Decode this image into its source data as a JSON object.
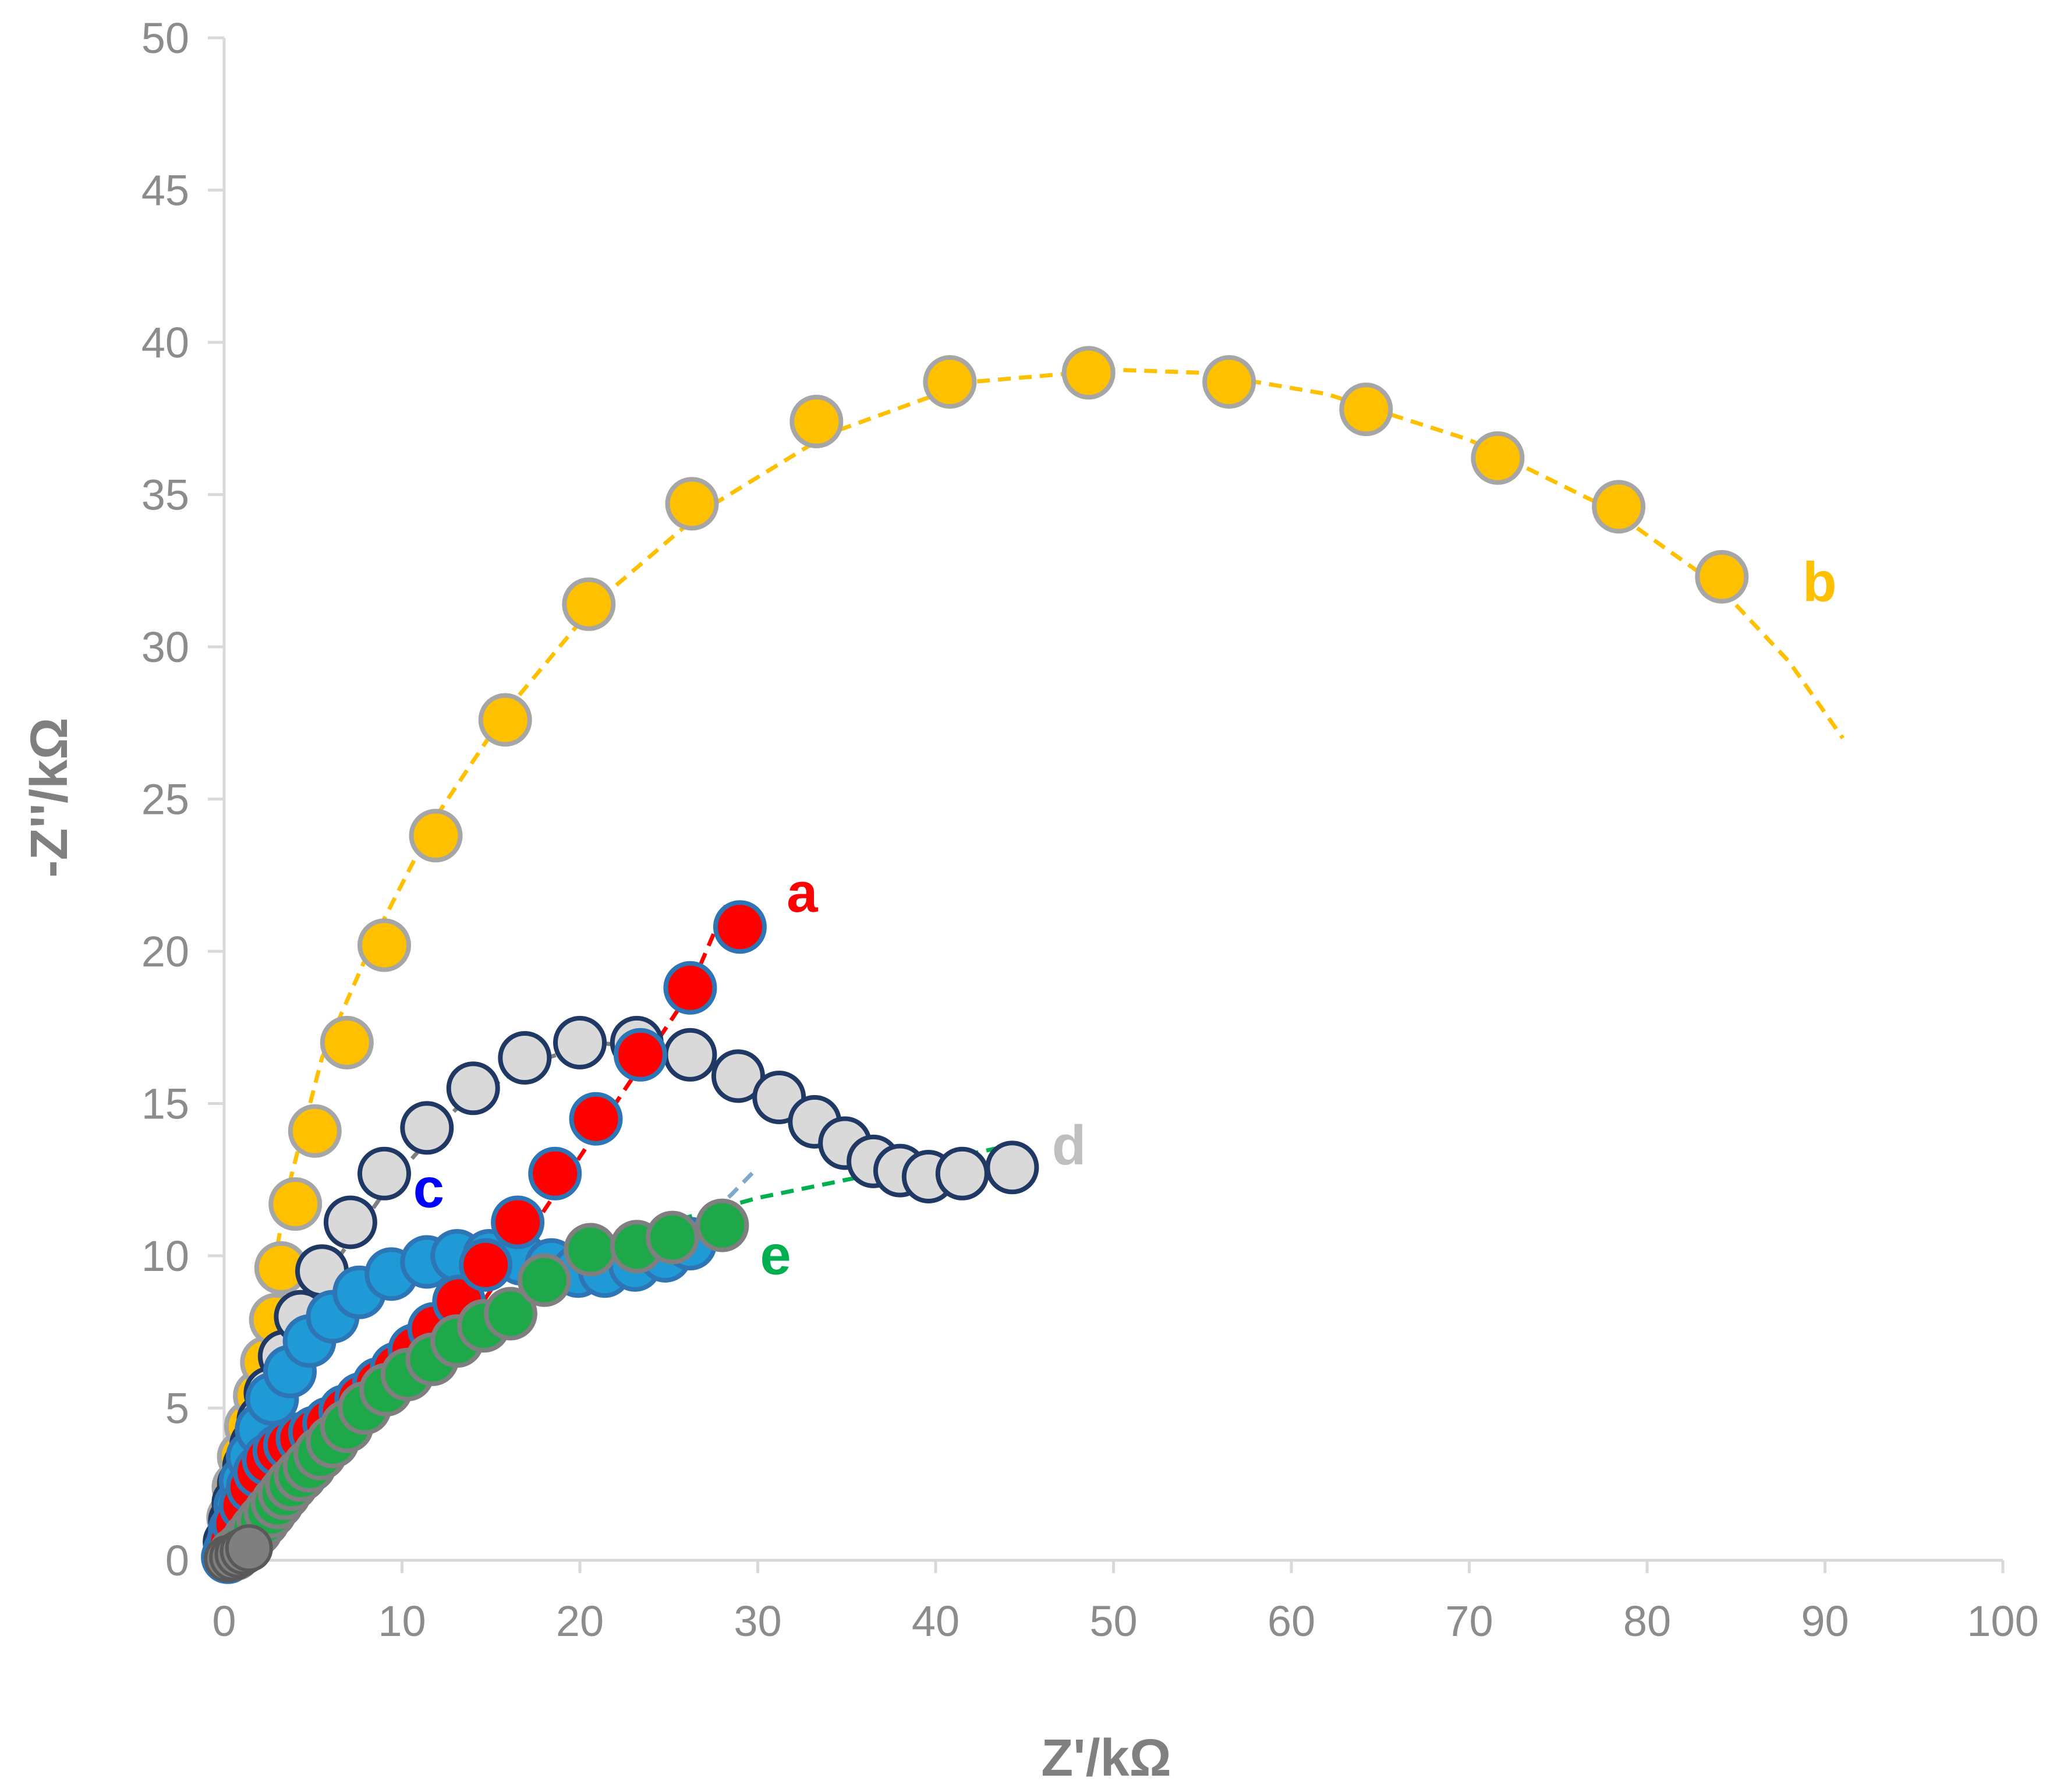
{
  "chart_data": {
    "type": "scatter",
    "title": "",
    "xlabel": "Z'/kΩ",
    "ylabel": "-Z''/kΩ",
    "xlim": [
      0,
      100
    ],
    "ylim": [
      0,
      50
    ],
    "xticks": [
      "0",
      "10",
      "20",
      "30",
      "40",
      "50",
      "60",
      "70",
      "80",
      "90",
      "100"
    ],
    "yticks": [
      "0",
      "5",
      "10",
      "15",
      "20",
      "25",
      "30",
      "35",
      "40",
      "45",
      "50"
    ],
    "grid": false,
    "legend": "none",
    "colors": {
      "a": "#ff0000",
      "b": "#ffc000",
      "c": "#00b0f0",
      "d": "#bfbfbf",
      "e": "#00b050",
      "axis": "#d9d9d9",
      "open_marker_edge": "#1f3864"
    },
    "series": [
      {
        "name": "a",
        "label_pos": [
          32.5,
          21.3
        ],
        "points": [
          [
            0.2,
            0.1
          ],
          [
            0.5,
            0.6
          ],
          [
            0.8,
            1.2
          ],
          [
            1.2,
            1.8
          ],
          [
            1.6,
            2.4
          ],
          [
            2.0,
            2.9
          ],
          [
            2.5,
            3.3
          ],
          [
            3.1,
            3.6
          ],
          [
            3.7,
            3.8
          ],
          [
            4.4,
            4.0
          ],
          [
            5.1,
            4.2
          ],
          [
            5.9,
            4.5
          ],
          [
            6.8,
            4.9
          ],
          [
            7.7,
            5.3
          ],
          [
            8.7,
            5.8
          ],
          [
            9.7,
            6.3
          ],
          [
            10.7,
            6.9
          ],
          [
            11.8,
            7.6
          ],
          [
            13.2,
            8.5
          ],
          [
            14.7,
            9.7
          ],
          [
            16.5,
            11.1
          ],
          [
            18.6,
            12.7
          ],
          [
            20.9,
            14.5
          ],
          [
            23.4,
            16.6
          ],
          [
            26.2,
            18.8
          ],
          [
            29.0,
            20.8
          ]
        ],
        "fit": [
          [
            14.0,
            8.0
          ],
          [
            18.0,
            11.5
          ],
          [
            22.0,
            15.0
          ],
          [
            26.0,
            18.5
          ],
          [
            28.2,
            21.5
          ]
        ]
      },
      {
        "name": "b",
        "label_pos": [
          89.7,
          31.5
        ],
        "points": [
          [
            0.3,
            0.6
          ],
          [
            0.5,
            1.4
          ],
          [
            0.8,
            2.4
          ],
          [
            1.1,
            3.4
          ],
          [
            1.5,
            4.4
          ],
          [
            2.0,
            5.4
          ],
          [
            2.4,
            6.5
          ],
          [
            2.9,
            7.9
          ],
          [
            3.2,
            9.6
          ],
          [
            4.0,
            11.7
          ],
          [
            5.1,
            14.1
          ],
          [
            6.9,
            17.0
          ],
          [
            9.0,
            20.2
          ],
          [
            11.9,
            23.8
          ],
          [
            15.8,
            27.6
          ],
          [
            20.5,
            31.4
          ],
          [
            26.3,
            34.7
          ],
          [
            33.3,
            37.4
          ],
          [
            40.8,
            38.7
          ],
          [
            48.6,
            39.0
          ],
          [
            56.5,
            38.7
          ],
          [
            64.2,
            37.8
          ],
          [
            71.6,
            36.2
          ],
          [
            78.4,
            34.6
          ],
          [
            84.2,
            32.3
          ]
        ],
        "fit": [
          [
            0.5,
            1.5
          ],
          [
            2.0,
            7.0
          ],
          [
            3.5,
            12.0
          ],
          [
            5.5,
            16.5
          ],
          [
            8.5,
            20.5
          ],
          [
            12.0,
            24.5
          ],
          [
            16.0,
            28.0
          ],
          [
            21.0,
            31.5
          ],
          [
            27.0,
            34.5
          ],
          [
            34.0,
            37.0
          ],
          [
            42.0,
            38.7
          ],
          [
            50.0,
            39.1
          ],
          [
            55.0,
            39.0
          ],
          [
            62.0,
            38.3
          ],
          [
            70.0,
            36.8
          ],
          [
            78.0,
            34.5
          ],
          [
            84.0,
            32.0
          ],
          [
            88.0,
            29.5
          ],
          [
            91.0,
            27.0
          ]
        ]
      },
      {
        "name": "c",
        "label_pos": [
          11.5,
          11.6
        ],
        "points": [
          [
            0.3,
            0.3
          ],
          [
            0.6,
            1.0
          ],
          [
            0.9,
            1.8
          ],
          [
            1.2,
            2.6
          ],
          [
            1.6,
            3.4
          ],
          [
            2.1,
            4.3
          ],
          [
            2.7,
            5.3
          ],
          [
            3.7,
            6.2
          ],
          [
            4.8,
            7.2
          ],
          [
            6.1,
            8.0
          ],
          [
            7.6,
            8.8
          ],
          [
            9.4,
            9.4
          ],
          [
            11.4,
            9.8
          ],
          [
            13.1,
            10.0
          ],
          [
            14.9,
            10.0
          ],
          [
            16.7,
            9.9
          ],
          [
            18.4,
            9.7
          ],
          [
            19.9,
            9.5
          ],
          [
            21.4,
            9.5
          ],
          [
            23.1,
            9.7
          ],
          [
            24.8,
            10.0
          ],
          [
            26.2,
            10.4
          ]
        ],
        "fit": [
          [
            23.5,
            10.0
          ],
          [
            26.5,
            11.0
          ],
          [
            28.5,
            12.0
          ],
          [
            30.0,
            12.9
          ]
        ]
      },
      {
        "name": "d",
        "label_pos": [
          47.5,
          13.0
        ],
        "points": [
          [
            0.3,
            0.6
          ],
          [
            0.6,
            1.3
          ],
          [
            0.8,
            1.9
          ],
          [
            1.1,
            2.5
          ],
          [
            1.4,
            3.1
          ],
          [
            1.8,
            3.8
          ],
          [
            2.2,
            4.6
          ],
          [
            2.6,
            5.5
          ],
          [
            3.4,
            6.7
          ],
          [
            4.3,
            8.0
          ],
          [
            5.5,
            9.5
          ],
          [
            7.1,
            11.1
          ],
          [
            9.0,
            12.7
          ],
          [
            11.4,
            14.2
          ],
          [
            14.0,
            15.5
          ],
          [
            16.9,
            16.5
          ],
          [
            20.0,
            17.0
          ],
          [
            23.2,
            17.0
          ],
          [
            26.2,
            16.6
          ],
          [
            28.9,
            15.9
          ],
          [
            31.2,
            15.2
          ],
          [
            33.2,
            14.4
          ],
          [
            34.9,
            13.7
          ],
          [
            36.5,
            13.1
          ],
          [
            38.0,
            12.8
          ],
          [
            39.6,
            12.6
          ],
          [
            41.5,
            12.7
          ],
          [
            44.3,
            12.9
          ]
        ],
        "fit": [
          [
            2.0,
            5.0
          ],
          [
            4.0,
            7.5
          ],
          [
            6.5,
            10.0
          ],
          [
            9.5,
            12.5
          ],
          [
            13.0,
            14.8
          ],
          [
            17.0,
            16.3
          ],
          [
            21.0,
            17.0
          ],
          [
            24.0,
            16.8
          ],
          [
            25.8,
            16.3
          ]
        ]
      },
      {
        "name": "e",
        "label_pos": [
          31.0,
          9.4
        ],
        "points": [
          [
            0.6,
            0.2
          ],
          [
            1.0,
            0.4
          ],
          [
            1.4,
            0.7
          ],
          [
            1.8,
            1.0
          ],
          [
            2.2,
            1.3
          ],
          [
            2.6,
            1.6
          ],
          [
            3.0,
            1.9
          ],
          [
            3.4,
            2.2
          ],
          [
            3.8,
            2.5
          ],
          [
            4.3,
            2.8
          ],
          [
            4.8,
            3.1
          ],
          [
            5.4,
            3.5
          ],
          [
            6.1,
            3.9
          ],
          [
            6.9,
            4.4
          ],
          [
            7.9,
            5.0
          ],
          [
            9.1,
            5.6
          ],
          [
            10.3,
            6.1
          ],
          [
            11.7,
            6.6
          ],
          [
            13.1,
            7.2
          ],
          [
            14.6,
            7.7
          ],
          [
            16.1,
            8.1
          ],
          [
            18.0,
            9.2
          ],
          [
            20.6,
            10.2
          ],
          [
            23.2,
            10.3
          ],
          [
            25.2,
            10.6
          ],
          [
            28.0,
            11.0
          ]
        ],
        "fit": [
          [
            17.0,
            9.0
          ],
          [
            20.0,
            10.0
          ],
          [
            25.0,
            11.1
          ],
          [
            30.0,
            11.9
          ],
          [
            35.0,
            12.5
          ],
          [
            40.0,
            13.1
          ],
          [
            44.0,
            13.6
          ]
        ]
      }
    ]
  }
}
